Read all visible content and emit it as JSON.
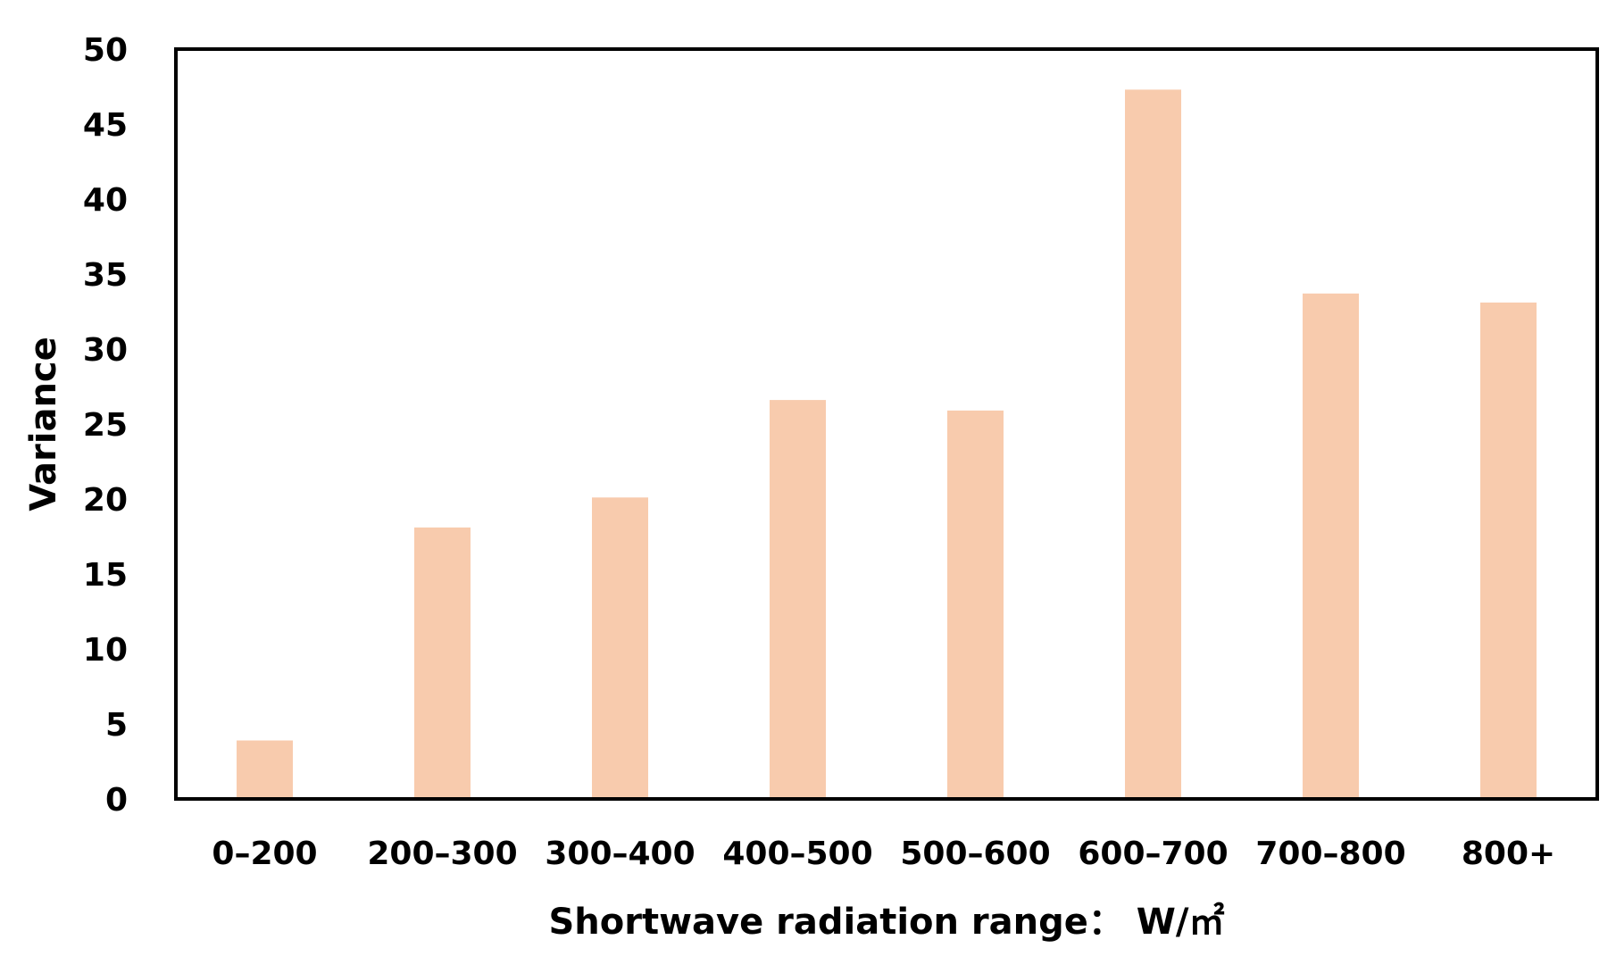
{
  "chart_data": {
    "type": "bar",
    "title": "",
    "xlabel": "Shortwave radiation range：  W/㎡",
    "ylabel": "Variance",
    "categories": [
      "0–200",
      "200–300",
      "300–400",
      "400–500",
      "500–600",
      "600–700",
      "700–800",
      "800+"
    ],
    "values": [
      3.9,
      18.1,
      20.1,
      26.6,
      25.9,
      47.3,
      33.7,
      33.1
    ],
    "ylim": [
      0,
      50
    ],
    "yticks": [
      0,
      5,
      10,
      15,
      20,
      25,
      30,
      35,
      40,
      45,
      50
    ],
    "grid": false,
    "legend": "none",
    "bar_color": "#F8CBAD",
    "frame_color": "#000000"
  }
}
